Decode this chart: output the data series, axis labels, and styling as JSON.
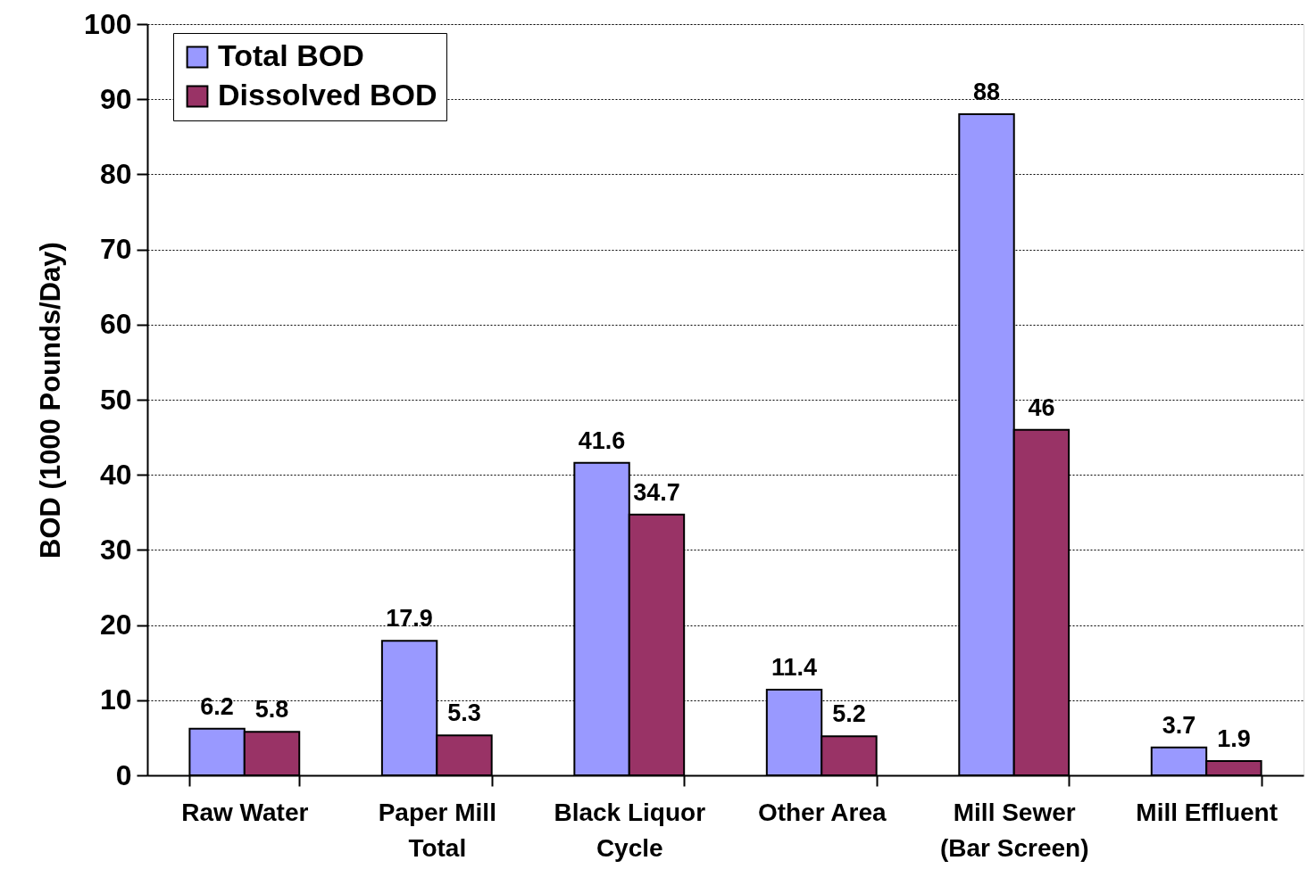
{
  "chart_data": {
    "type": "bar",
    "ylabel": "BOD (1000 Pounds/Day)",
    "categories": [
      "Raw Water",
      "Paper Mill Total",
      "Black Liquor Cycle",
      "Other Area",
      "Mill Sewer (Bar Screen)",
      "Mill Effluent"
    ],
    "series": [
      {
        "name": "Total BOD",
        "color": "#9999ff",
        "values": [
          6.2,
          17.9,
          41.6,
          11.4,
          88,
          3.7
        ]
      },
      {
        "name": "Dissolved BOD",
        "color": "#993366",
        "values": [
          5.8,
          5.3,
          34.7,
          5.2,
          46,
          1.9
        ]
      }
    ],
    "ylim": [
      0,
      100
    ],
    "yticks": [
      0,
      10,
      20,
      30,
      40,
      50,
      60,
      70,
      80,
      90,
      100
    ],
    "grid": "y",
    "legend": "top left",
    "data_labels": true
  }
}
